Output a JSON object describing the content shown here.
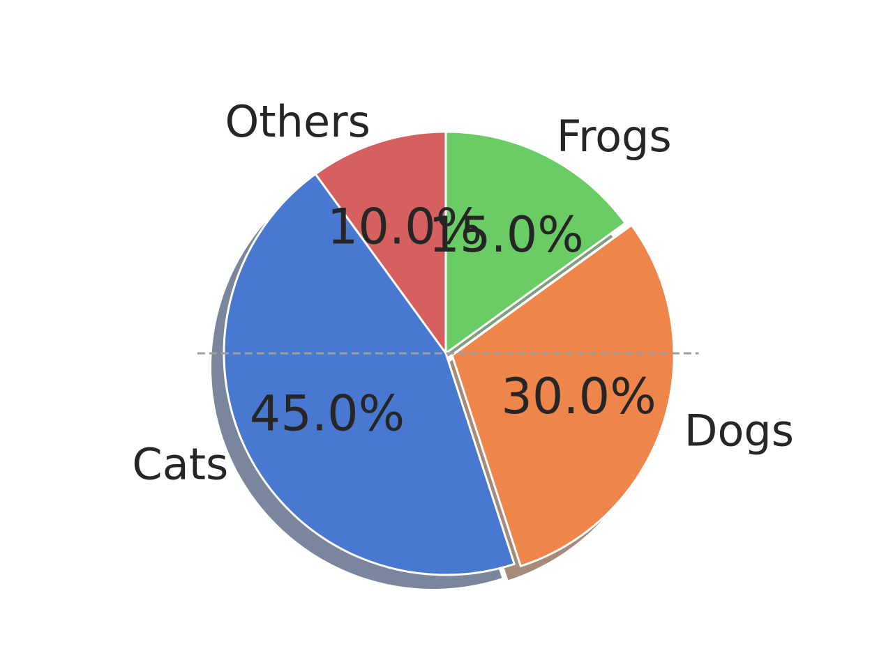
{
  "chart_data": {
    "type": "pie",
    "slices": [
      {
        "label": "Others",
        "value": 10.0,
        "pct_label": "10.0%",
        "color": "#d65f5f",
        "explode": 0
      },
      {
        "label": "Cats",
        "value": 45.0,
        "pct_label": "45.0%",
        "color": "#4878d0",
        "explode": 0
      },
      {
        "label": "Dogs",
        "value": 30.0,
        "pct_label": "30.0%",
        "color": "#ee854a",
        "explode": 0.03
      },
      {
        "label": "Frogs",
        "value": 15.0,
        "pct_label": "15.0%",
        "color": "#6acc64",
        "explode": 0
      }
    ],
    "start_angle_deg": 90,
    "direction": "counterclockwise",
    "shadow": true,
    "reference_line": {
      "style": "dashed",
      "orientation": "horizontal",
      "color": "#9e9e9e"
    }
  }
}
